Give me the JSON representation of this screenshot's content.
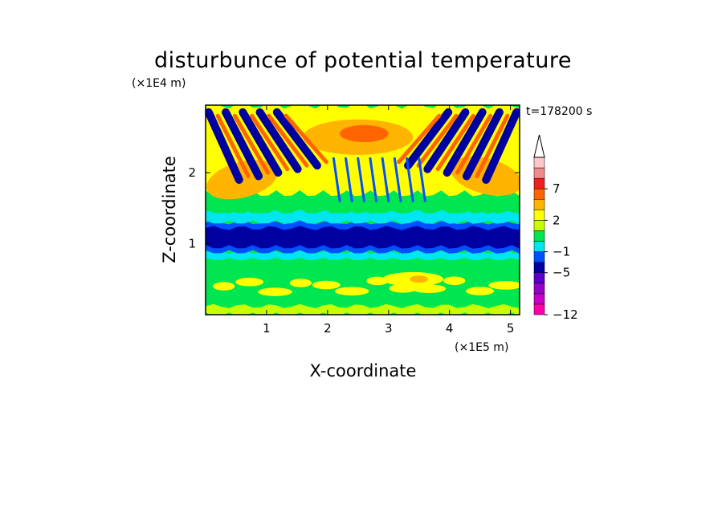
{
  "chart_data": {
    "type": "heatmap",
    "title": "disturbunce of potential temperature",
    "xlabel": "X-coordinate",
    "ylabel": "Z-coordinate",
    "x_unit": "(×1E5 m)",
    "y_unit": "(×1E4 m)",
    "time_label": "t=178200 s",
    "xlim": [
      0,
      5.15
    ],
    "ylim": [
      0,
      2.95
    ],
    "x_ticks": [
      1,
      2,
      3,
      4,
      5
    ],
    "y_ticks": [
      1,
      2
    ],
    "colorbar": {
      "levels": [
        -12,
        -11,
        -9,
        -7,
        -5,
        -3,
        -1,
        0,
        1,
        2,
        3,
        5,
        7,
        9,
        11
      ],
      "tick_labels": [
        "-12",
        "-5",
        "-1",
        "2",
        "7"
      ],
      "tick_values": [
        -12,
        -5,
        -1,
        2,
        7
      ],
      "colors": [
        "#ff00a8",
        "#c800c8",
        "#9600c8",
        "#5a00c8",
        "#0000a0",
        "#0050ff",
        "#00e6f0",
        "#00e650",
        "#c8ff00",
        "#ffff00",
        "#ffb400",
        "#ff6400",
        "#f01e1e",
        "#f08c8c",
        "#ffc8c8"
      ],
      "extend": "max"
    },
    "bands": [
      {
        "z_from": 0.0,
        "z_to": 0.4,
        "dominant_values": [
          0,
          2
        ],
        "description_level": "near-zero with yellow patches"
      },
      {
        "z_from": 0.4,
        "z_to": 0.75,
        "dominant_values": [
          0,
          1
        ],
        "description_level": ""
      },
      {
        "z_from": 0.85,
        "z_to": 1.3,
        "dominant_values": [
          -5,
          -3
        ],
        "description_level": ""
      },
      {
        "z_from": 1.3,
        "z_to": 1.45,
        "dominant_values": [
          -1
        ],
        "description_level": ""
      },
      {
        "z_from": 1.45,
        "z_to": 2.9,
        "dominant_values": [
          2,
          5,
          -3
        ],
        "description_level": "gravity wave fans"
      }
    ]
  }
}
